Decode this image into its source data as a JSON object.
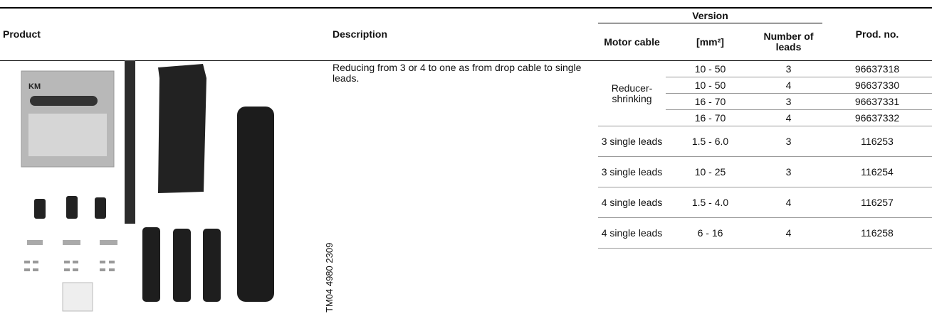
{
  "header": {
    "product": "Product",
    "description": "Description",
    "version": "Version",
    "motor_cable": "Motor cable",
    "cross_section": "[mm²]",
    "number_of_leads": "Number of leads",
    "prod_no": "Prod. no."
  },
  "product": {
    "description": "Reducing from 3 or 4 to one as from drop cable to single leads.",
    "image_id": "TM04 4980 2309"
  },
  "groups": [
    {
      "motor_cable": "Reducer-shrinking",
      "rows": [
        [
          "10 - 50",
          "3",
          "96637318"
        ],
        [
          "10 - 50",
          "4",
          "96637330"
        ],
        [
          "16 - 70",
          "3",
          "96637331"
        ],
        [
          "16 - 70",
          "4",
          "96637332"
        ]
      ]
    },
    {
      "motor_cable": "3 single leads",
      "rows": [
        [
          "1.5 - 6.0",
          "3",
          "116253"
        ]
      ]
    },
    {
      "motor_cable": "3 single leads",
      "rows": [
        [
          "10 - 25",
          "3",
          "116254"
        ]
      ]
    },
    {
      "motor_cable": "4 single leads",
      "rows": [
        [
          "1.5 - 4.0",
          "4",
          "116257"
        ]
      ]
    },
    {
      "motor_cable": "4 single leads",
      "rows": [
        [
          "6 - 16",
          "4",
          "116258"
        ]
      ]
    }
  ]
}
